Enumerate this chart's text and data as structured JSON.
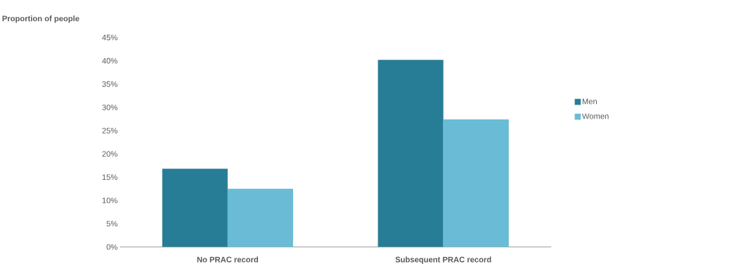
{
  "chart_data": {
    "type": "bar",
    "ylabel": "Proportion of people",
    "categories": [
      "No PRAC record",
      "Subsequent PRAC record"
    ],
    "series": [
      {
        "name": "Men",
        "color": "#287d96",
        "values": [
          16.8,
          40.2
        ]
      },
      {
        "name": "Women",
        "color": "#6abcd6",
        "values": [
          12.5,
          27.4
        ]
      }
    ],
    "ylim": [
      0,
      45
    ],
    "yticks": [
      {
        "value": 0,
        "label": "0%"
      },
      {
        "value": 5,
        "label": "5%"
      },
      {
        "value": 10,
        "label": "10%"
      },
      {
        "value": 15,
        "label": "15%"
      },
      {
        "value": 20,
        "label": "20%"
      },
      {
        "value": 25,
        "label": "25%"
      },
      {
        "value": 30,
        "label": "30%"
      },
      {
        "value": 35,
        "label": "35%"
      },
      {
        "value": 40,
        "label": "40%"
      },
      {
        "value": 45,
        "label": "45%"
      }
    ],
    "grid": false,
    "legend": "right"
  }
}
